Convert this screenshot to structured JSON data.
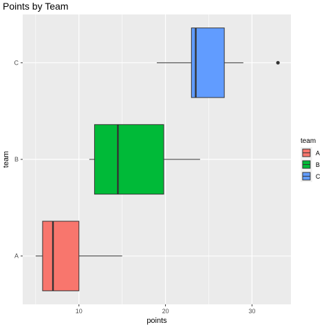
{
  "chart_data": {
    "type": "boxplot",
    "title": "Points by Team",
    "xlabel": "points",
    "ylabel": "team",
    "xlim": [
      3.5,
      34.5
    ],
    "x_ticks": [
      10,
      20,
      30
    ],
    "categories": [
      "A",
      "B",
      "C"
    ],
    "boxes": [
      {
        "category": "A",
        "whisker_low": 5,
        "q1": 5.8,
        "median": 7,
        "q3": 10,
        "whisker_high": 15,
        "outliers": [],
        "color": "#F8766D"
      },
      {
        "category": "B",
        "whisker_low": 11.2,
        "q1": 11.8,
        "median": 14.5,
        "q3": 19.8,
        "whisker_high": 24,
        "outliers": [],
        "color": "#00BA38"
      },
      {
        "category": "C",
        "whisker_low": 19,
        "q1": 23,
        "median": 23.5,
        "q3": 26.8,
        "whisker_high": 29,
        "outliers": [
          33
        ],
        "color": "#619CFF"
      }
    ],
    "legend": {
      "title": "team",
      "placement": "right",
      "entries": [
        {
          "label": "A",
          "color": "#F8766D"
        },
        {
          "label": "B",
          "color": "#00BA38"
        },
        {
          "label": "C",
          "color": "#619CFF"
        }
      ]
    },
    "grid": true,
    "panel_background": "#EBEBEB"
  }
}
